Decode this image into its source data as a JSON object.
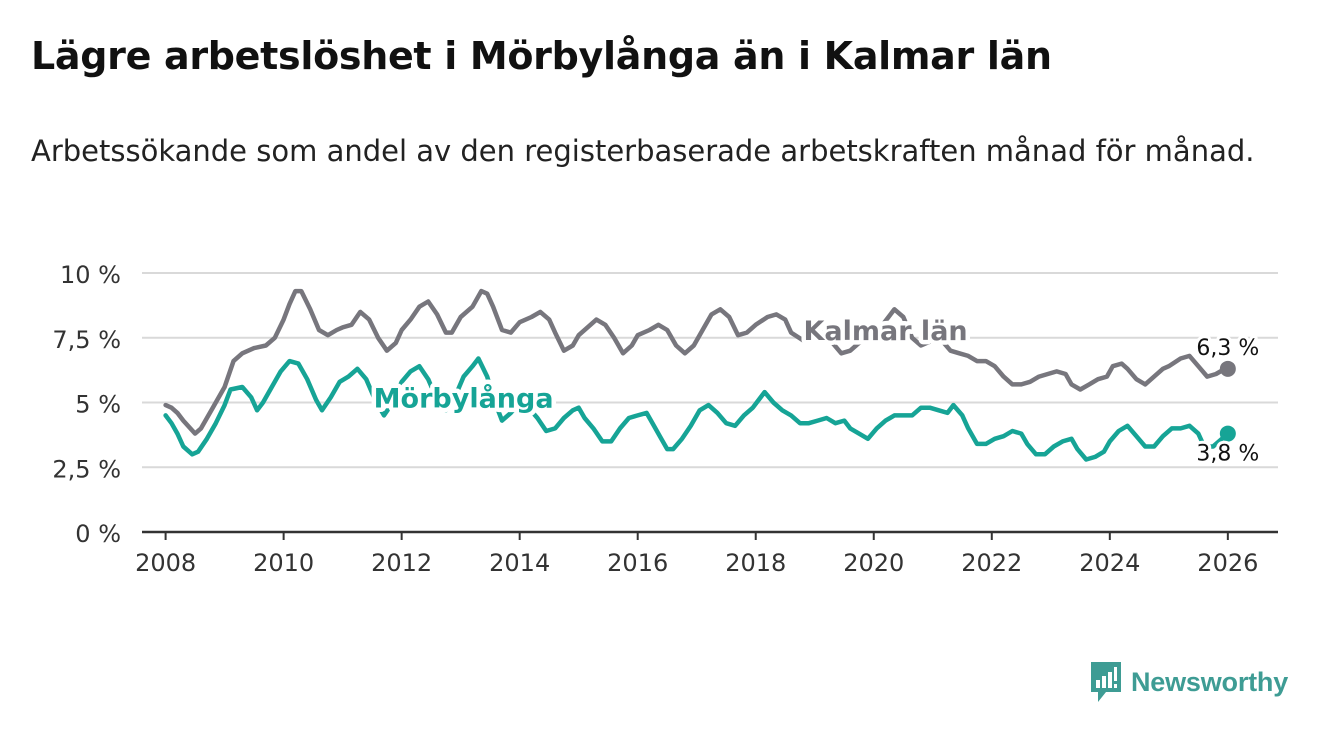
{
  "title": "Lägre arbetslöshet i Mörbylånga än i Kalmar län",
  "subtitle": "Arbetssökande som andel av den registerbaserade arbetskraften månad för månad.",
  "brand": {
    "name": "Newsworthy"
  },
  "colors": {
    "kalmar": "#77767d",
    "morbylanga": "#16a496",
    "grid": "#d9d9d9",
    "axis": "#333333"
  },
  "chart_data": {
    "type": "line",
    "title": "Lägre arbetslöshet i Mörbylånga än i Kalmar län",
    "xlabel": "",
    "ylabel": "",
    "xlim": [
      2007.6,
      2026.85
    ],
    "ylim": [
      0,
      10
    ],
    "grid": true,
    "x_ticks": [
      2008,
      2010,
      2012,
      2014,
      2016,
      2018,
      2020,
      2022,
      2024,
      2026
    ],
    "x_tick_labels": [
      "2008",
      "2010",
      "2012",
      "2014",
      "2016",
      "2018",
      "2020",
      "2022",
      "2024",
      "2026"
    ],
    "y_ticks": [
      0,
      2.5,
      5,
      7.5,
      10
    ],
    "y_tick_labels": [
      "0 %",
      "2,5 %",
      "5 %",
      "7,5 %",
      "10 %"
    ],
    "series": [
      {
        "name": "Kalmar län",
        "label_x": 2020.2,
        "label_y": 7.8,
        "end_label": "6,3 %",
        "points": [
          [
            2008.0,
            4.9
          ],
          [
            2008.1,
            4.8
          ],
          [
            2008.2,
            4.6
          ],
          [
            2008.3,
            4.3
          ],
          [
            2008.5,
            3.8
          ],
          [
            2008.6,
            4.0
          ],
          [
            2008.8,
            4.8
          ],
          [
            2009.0,
            5.6
          ],
          [
            2009.15,
            6.6
          ],
          [
            2009.3,
            6.9
          ],
          [
            2009.5,
            7.1
          ],
          [
            2009.7,
            7.2
          ],
          [
            2009.85,
            7.5
          ],
          [
            2010.0,
            8.2
          ],
          [
            2010.1,
            8.8
          ],
          [
            2010.2,
            9.3
          ],
          [
            2010.3,
            9.3
          ],
          [
            2010.45,
            8.6
          ],
          [
            2010.6,
            7.8
          ],
          [
            2010.75,
            7.6
          ],
          [
            2010.9,
            7.8
          ],
          [
            2011.0,
            7.9
          ],
          [
            2011.15,
            8.0
          ],
          [
            2011.3,
            8.5
          ],
          [
            2011.45,
            8.2
          ],
          [
            2011.6,
            7.5
          ],
          [
            2011.75,
            7.0
          ],
          [
            2011.9,
            7.3
          ],
          [
            2012.0,
            7.8
          ],
          [
            2012.15,
            8.2
          ],
          [
            2012.3,
            8.7
          ],
          [
            2012.45,
            8.9
          ],
          [
            2012.6,
            8.4
          ],
          [
            2012.75,
            7.7
          ],
          [
            2012.85,
            7.7
          ],
          [
            2013.0,
            8.3
          ],
          [
            2013.2,
            8.7
          ],
          [
            2013.35,
            9.3
          ],
          [
            2013.45,
            9.2
          ],
          [
            2013.55,
            8.7
          ],
          [
            2013.7,
            7.8
          ],
          [
            2013.85,
            7.7
          ],
          [
            2014.0,
            8.1
          ],
          [
            2014.2,
            8.3
          ],
          [
            2014.35,
            8.5
          ],
          [
            2014.5,
            8.2
          ],
          [
            2014.6,
            7.7
          ],
          [
            2014.75,
            7.0
          ],
          [
            2014.9,
            7.2
          ],
          [
            2015.0,
            7.6
          ],
          [
            2015.15,
            7.9
          ],
          [
            2015.3,
            8.2
          ],
          [
            2015.45,
            8.0
          ],
          [
            2015.6,
            7.5
          ],
          [
            2015.75,
            6.9
          ],
          [
            2015.9,
            7.2
          ],
          [
            2016.0,
            7.6
          ],
          [
            2016.2,
            7.8
          ],
          [
            2016.35,
            8.0
          ],
          [
            2016.5,
            7.8
          ],
          [
            2016.65,
            7.2
          ],
          [
            2016.8,
            6.9
          ],
          [
            2016.95,
            7.2
          ],
          [
            2017.1,
            7.8
          ],
          [
            2017.25,
            8.4
          ],
          [
            2017.4,
            8.6
          ],
          [
            2017.55,
            8.3
          ],
          [
            2017.7,
            7.6
          ],
          [
            2017.85,
            7.7
          ],
          [
            2018.0,
            8.0
          ],
          [
            2018.2,
            8.3
          ],
          [
            2018.35,
            8.4
          ],
          [
            2018.5,
            8.2
          ],
          [
            2018.6,
            7.7
          ],
          [
            2018.8,
            7.4
          ],
          [
            2019.0,
            7.5
          ],
          [
            2019.15,
            7.7
          ],
          [
            2019.3,
            7.3
          ],
          [
            2019.45,
            6.9
          ],
          [
            2019.6,
            7.0
          ],
          [
            2019.8,
            7.4
          ],
          [
            2020.0,
            7.8
          ],
          [
            2020.15,
            8.0
          ],
          [
            2020.35,
            8.6
          ],
          [
            2020.5,
            8.3
          ],
          [
            2020.65,
            7.5
          ],
          [
            2020.8,
            7.2
          ],
          [
            2021.0,
            7.4
          ],
          [
            2021.15,
            7.4
          ],
          [
            2021.3,
            7.0
          ],
          [
            2021.45,
            6.9
          ],
          [
            2021.6,
            6.8
          ],
          [
            2021.75,
            6.6
          ],
          [
            2021.9,
            6.6
          ],
          [
            2022.05,
            6.4
          ],
          [
            2022.2,
            6.0
          ],
          [
            2022.35,
            5.7
          ],
          [
            2022.5,
            5.7
          ],
          [
            2022.65,
            5.8
          ],
          [
            2022.8,
            6.0
          ],
          [
            2022.95,
            6.1
          ],
          [
            2023.1,
            6.2
          ],
          [
            2023.25,
            6.1
          ],
          [
            2023.35,
            5.7
          ],
          [
            2023.5,
            5.5
          ],
          [
            2023.65,
            5.7
          ],
          [
            2023.8,
            5.9
          ],
          [
            2023.95,
            6.0
          ],
          [
            2024.05,
            6.4
          ],
          [
            2024.2,
            6.5
          ],
          [
            2024.3,
            6.3
          ],
          [
            2024.45,
            5.9
          ],
          [
            2024.6,
            5.7
          ],
          [
            2024.75,
            6.0
          ],
          [
            2024.9,
            6.3
          ],
          [
            2025.0,
            6.4
          ],
          [
            2025.2,
            6.7
          ],
          [
            2025.35,
            6.8
          ],
          [
            2025.5,
            6.4
          ],
          [
            2025.65,
            6.0
          ],
          [
            2025.8,
            6.1
          ],
          [
            2025.95,
            6.3
          ],
          [
            2026.0,
            6.3
          ]
        ]
      },
      {
        "name": "Mörbylånga",
        "label_x": 2013.05,
        "label_y": 5.2,
        "end_label": "3,8 %",
        "points": [
          [
            2008.0,
            4.5
          ],
          [
            2008.1,
            4.2
          ],
          [
            2008.2,
            3.8
          ],
          [
            2008.3,
            3.3
          ],
          [
            2008.45,
            3.0
          ],
          [
            2008.55,
            3.1
          ],
          [
            2008.7,
            3.6
          ],
          [
            2008.85,
            4.2
          ],
          [
            2009.0,
            4.9
          ],
          [
            2009.1,
            5.5
          ],
          [
            2009.3,
            5.6
          ],
          [
            2009.45,
            5.2
          ],
          [
            2009.55,
            4.7
          ],
          [
            2009.65,
            5.0
          ],
          [
            2009.8,
            5.6
          ],
          [
            2009.95,
            6.2
          ],
          [
            2010.1,
            6.6
          ],
          [
            2010.25,
            6.5
          ],
          [
            2010.4,
            5.9
          ],
          [
            2010.55,
            5.1
          ],
          [
            2010.65,
            4.7
          ],
          [
            2010.8,
            5.2
          ],
          [
            2010.95,
            5.8
          ],
          [
            2011.1,
            6.0
          ],
          [
            2011.25,
            6.3
          ],
          [
            2011.4,
            5.9
          ],
          [
            2011.55,
            5.1
          ],
          [
            2011.7,
            4.5
          ],
          [
            2011.85,
            5.0
          ],
          [
            2012.0,
            5.8
          ],
          [
            2012.15,
            6.2
          ],
          [
            2012.3,
            6.4
          ],
          [
            2012.45,
            5.9
          ],
          [
            2012.6,
            5.1
          ],
          [
            2012.75,
            4.7
          ],
          [
            2012.9,
            5.2
          ],
          [
            2013.05,
            6.0
          ],
          [
            2013.2,
            6.4
          ],
          [
            2013.3,
            6.7
          ],
          [
            2013.45,
            6.0
          ],
          [
            2013.55,
            5.2
          ],
          [
            2013.7,
            4.3
          ],
          [
            2013.85,
            4.6
          ],
          [
            2014.0,
            5.0
          ],
          [
            2014.15,
            4.8
          ],
          [
            2014.3,
            4.4
          ],
          [
            2014.45,
            3.9
          ],
          [
            2014.6,
            4.0
          ],
          [
            2014.75,
            4.4
          ],
          [
            2014.9,
            4.7
          ],
          [
            2015.0,
            4.8
          ],
          [
            2015.1,
            4.4
          ],
          [
            2015.25,
            4.0
          ],
          [
            2015.4,
            3.5
          ],
          [
            2015.55,
            3.5
          ],
          [
            2015.7,
            4.0
          ],
          [
            2015.85,
            4.4
          ],
          [
            2016.0,
            4.5
          ],
          [
            2016.15,
            4.6
          ],
          [
            2016.25,
            4.2
          ],
          [
            2016.4,
            3.6
          ],
          [
            2016.5,
            3.2
          ],
          [
            2016.6,
            3.2
          ],
          [
            2016.75,
            3.6
          ],
          [
            2016.9,
            4.1
          ],
          [
            2017.05,
            4.7
          ],
          [
            2017.2,
            4.9
          ],
          [
            2017.35,
            4.6
          ],
          [
            2017.5,
            4.2
          ],
          [
            2017.65,
            4.1
          ],
          [
            2017.8,
            4.5
          ],
          [
            2017.95,
            4.8
          ],
          [
            2018.05,
            5.1
          ],
          [
            2018.15,
            5.4
          ],
          [
            2018.3,
            5.0
          ],
          [
            2018.45,
            4.7
          ],
          [
            2018.6,
            4.5
          ],
          [
            2018.75,
            4.2
          ],
          [
            2018.9,
            4.2
          ],
          [
            2019.05,
            4.3
          ],
          [
            2019.2,
            4.4
          ],
          [
            2019.35,
            4.2
          ],
          [
            2019.5,
            4.3
          ],
          [
            2019.6,
            4.0
          ],
          [
            2019.75,
            3.8
          ],
          [
            2019.9,
            3.6
          ],
          [
            2020.05,
            4.0
          ],
          [
            2020.2,
            4.3
          ],
          [
            2020.35,
            4.5
          ],
          [
            2020.5,
            4.5
          ],
          [
            2020.65,
            4.5
          ],
          [
            2020.8,
            4.8
          ],
          [
            2020.95,
            4.8
          ],
          [
            2021.1,
            4.7
          ],
          [
            2021.25,
            4.6
          ],
          [
            2021.35,
            4.9
          ],
          [
            2021.5,
            4.5
          ],
          [
            2021.6,
            4.0
          ],
          [
            2021.75,
            3.4
          ],
          [
            2021.9,
            3.4
          ],
          [
            2022.05,
            3.6
          ],
          [
            2022.2,
            3.7
          ],
          [
            2022.35,
            3.9
          ],
          [
            2022.5,
            3.8
          ],
          [
            2022.6,
            3.4
          ],
          [
            2022.75,
            3.0
          ],
          [
            2022.9,
            3.0
          ],
          [
            2023.05,
            3.3
          ],
          [
            2023.2,
            3.5
          ],
          [
            2023.35,
            3.6
          ],
          [
            2023.45,
            3.2
          ],
          [
            2023.6,
            2.8
          ],
          [
            2023.75,
            2.9
          ],
          [
            2023.9,
            3.1
          ],
          [
            2024.0,
            3.5
          ],
          [
            2024.15,
            3.9
          ],
          [
            2024.3,
            4.1
          ],
          [
            2024.45,
            3.7
          ],
          [
            2024.6,
            3.3
          ],
          [
            2024.75,
            3.3
          ],
          [
            2024.9,
            3.7
          ],
          [
            2025.05,
            4.0
          ],
          [
            2025.2,
            4.0
          ],
          [
            2025.35,
            4.1
          ],
          [
            2025.5,
            3.8
          ],
          [
            2025.6,
            3.3
          ],
          [
            2025.75,
            3.3
          ],
          [
            2025.9,
            3.6
          ],
          [
            2026.0,
            3.8
          ]
        ]
      }
    ]
  }
}
